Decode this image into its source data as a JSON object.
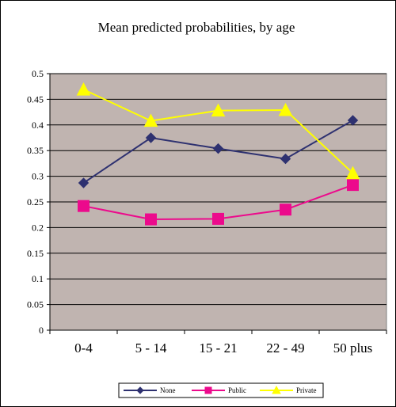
{
  "chart_data": {
    "type": "line",
    "title": "Mean predicted probabilities, by age",
    "xlabel": "",
    "ylabel": "",
    "categories": [
      "0-4",
      "5 - 14",
      "15 - 21",
      "22 - 49",
      "50 plus"
    ],
    "ylim": [
      0,
      0.5
    ],
    "yticks": [
      "0",
      "0.05",
      "0.1",
      "0.15",
      "0.2",
      "0.25",
      "0.3",
      "0.35",
      "0.4",
      "0.45",
      "0.5"
    ],
    "grid": true,
    "legend_position": "bottom",
    "plot_background": "#C0B4B0",
    "series": [
      {
        "name": "None",
        "values": [
          0.287,
          0.375,
          0.354,
          0.334,
          0.409
        ],
        "color": "#2E3170",
        "marker": "diamond"
      },
      {
        "name": "Public",
        "values": [
          0.242,
          0.216,
          0.217,
          0.235,
          0.283
        ],
        "color": "#EC0A8C",
        "marker": "square"
      },
      {
        "name": "Private",
        "values": [
          0.469,
          0.408,
          0.428,
          0.429,
          0.306
        ],
        "color": "#FFFF00",
        "marker": "triangle"
      }
    ]
  }
}
